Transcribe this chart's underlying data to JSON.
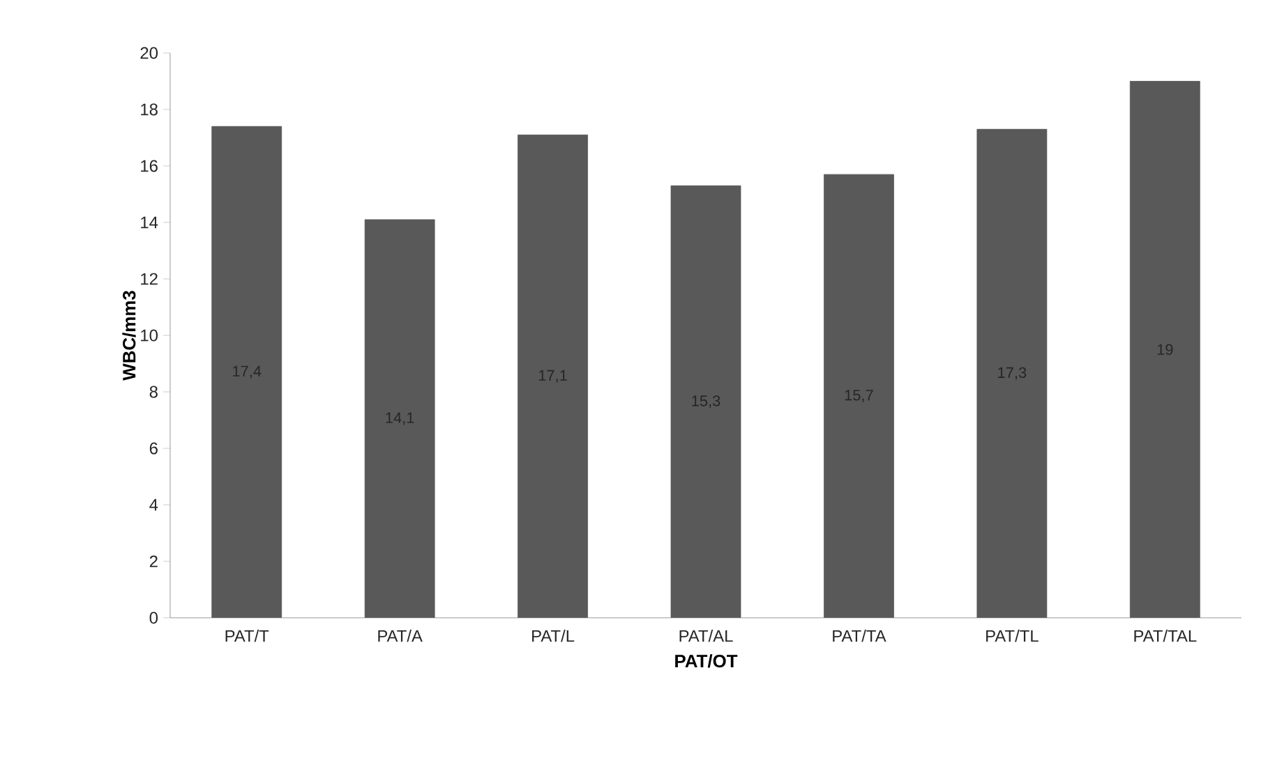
{
  "chart_data": {
    "type": "bar",
    "xlabel": "PAT/OT",
    "ylabel": "WBC/mm3",
    "categories": [
      "PAT/T",
      "PAT/A",
      "PAT/L",
      "PAT/AL",
      "PAT/TA",
      "PAT/TL",
      "PAT/TAL"
    ],
    "values": [
      17.4,
      14.1,
      17.1,
      15.3,
      15.7,
      17.3,
      19
    ],
    "value_labels": [
      "17,4",
      "14,1",
      "17,1",
      "15,3",
      "15,7",
      "17,3",
      "19"
    ],
    "color": "#595959",
    "ylim": [
      0,
      20
    ],
    "yticks": [
      0,
      2,
      4,
      6,
      8,
      10,
      12,
      14,
      16,
      18,
      20
    ],
    "grid": false
  }
}
